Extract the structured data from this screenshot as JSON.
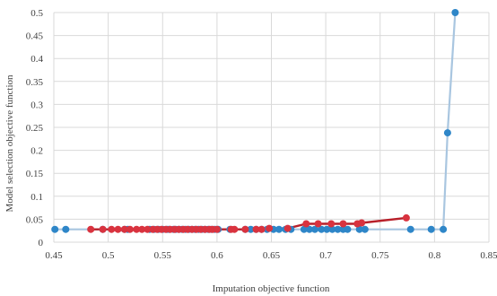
{
  "chart_data": {
    "type": "scatter",
    "title": "",
    "xlabel": "Imputation objective function",
    "ylabel": "Model selection objective function",
    "xlim": [
      0.45,
      0.85
    ],
    "ylim": [
      0,
      0.5
    ],
    "xticks": [
      "0.45",
      "0.5",
      "0.55",
      "0.6",
      "0.65",
      "0.7",
      "0.75",
      "0.8",
      "0.85"
    ],
    "yticks": [
      "0",
      "0.05",
      "0.1",
      "0.15",
      "0.2",
      "0.25",
      "0.3",
      "0.35",
      "0.4",
      "0.45",
      "0.5"
    ],
    "grid": true,
    "legend": "none",
    "series": [
      {
        "color": "#2e86c8",
        "line_color": "#a9c6e0",
        "points": [
          [
            0.451,
            0.028
          ],
          [
            0.461,
            0.028
          ],
          [
            0.495,
            0.028
          ],
          [
            0.515,
            0.028
          ],
          [
            0.518,
            0.028
          ],
          [
            0.538,
            0.028
          ],
          [
            0.542,
            0.028
          ],
          [
            0.546,
            0.028
          ],
          [
            0.55,
            0.028
          ],
          [
            0.554,
            0.028
          ],
          [
            0.556,
            0.028
          ],
          [
            0.56,
            0.028
          ],
          [
            0.562,
            0.028
          ],
          [
            0.565,
            0.028
          ],
          [
            0.568,
            0.028
          ],
          [
            0.571,
            0.028
          ],
          [
            0.574,
            0.028
          ],
          [
            0.577,
            0.028
          ],
          [
            0.58,
            0.028
          ],
          [
            0.583,
            0.028
          ],
          [
            0.586,
            0.028
          ],
          [
            0.589,
            0.028
          ],
          [
            0.592,
            0.028
          ],
          [
            0.595,
            0.028
          ],
          [
            0.598,
            0.028
          ],
          [
            0.601,
            0.028
          ],
          [
            0.612,
            0.028
          ],
          [
            0.626,
            0.028
          ],
          [
            0.631,
            0.028
          ],
          [
            0.636,
            0.028
          ],
          [
            0.641,
            0.028
          ],
          [
            0.646,
            0.028
          ],
          [
            0.652,
            0.028
          ],
          [
            0.657,
            0.028
          ],
          [
            0.663,
            0.028
          ],
          [
            0.668,
            0.028
          ],
          [
            0.68,
            0.028
          ],
          [
            0.685,
            0.028
          ],
          [
            0.69,
            0.028
          ],
          [
            0.696,
            0.028
          ],
          [
            0.701,
            0.028
          ],
          [
            0.706,
            0.028
          ],
          [
            0.711,
            0.028
          ],
          [
            0.716,
            0.028
          ],
          [
            0.72,
            0.028
          ],
          [
            0.731,
            0.028
          ],
          [
            0.736,
            0.028
          ],
          [
            0.778,
            0.028
          ],
          [
            0.797,
            0.028
          ],
          [
            0.808,
            0.028
          ],
          [
            0.812,
            0.238
          ],
          [
            0.819,
            0.5
          ]
        ]
      },
      {
        "color": "#d9333f",
        "line_color": "#b8202a",
        "points": [
          [
            0.484,
            0.028
          ],
          [
            0.495,
            0.028
          ],
          [
            0.503,
            0.028
          ],
          [
            0.509,
            0.028
          ],
          [
            0.515,
            0.028
          ],
          [
            0.52,
            0.028
          ],
          [
            0.526,
            0.028
          ],
          [
            0.531,
            0.028
          ],
          [
            0.536,
            0.028
          ],
          [
            0.541,
            0.028
          ],
          [
            0.545,
            0.028
          ],
          [
            0.549,
            0.028
          ],
          [
            0.553,
            0.028
          ],
          [
            0.557,
            0.028
          ],
          [
            0.561,
            0.028
          ],
          [
            0.565,
            0.028
          ],
          [
            0.569,
            0.028
          ],
          [
            0.573,
            0.028
          ],
          [
            0.577,
            0.028
          ],
          [
            0.581,
            0.028
          ],
          [
            0.585,
            0.028
          ],
          [
            0.589,
            0.028
          ],
          [
            0.593,
            0.028
          ],
          [
            0.596,
            0.028
          ],
          [
            0.6,
            0.028
          ],
          [
            0.613,
            0.028
          ],
          [
            0.616,
            0.028
          ],
          [
            0.626,
            0.028
          ],
          [
            0.636,
            0.028
          ],
          [
            0.641,
            0.028
          ],
          [
            0.648,
            0.03
          ],
          [
            0.665,
            0.03
          ],
          [
            0.682,
            0.04
          ],
          [
            0.693,
            0.04
          ],
          [
            0.705,
            0.04
          ],
          [
            0.716,
            0.04
          ],
          [
            0.729,
            0.04
          ],
          [
            0.733,
            0.042
          ],
          [
            0.774,
            0.053
          ]
        ]
      }
    ]
  }
}
